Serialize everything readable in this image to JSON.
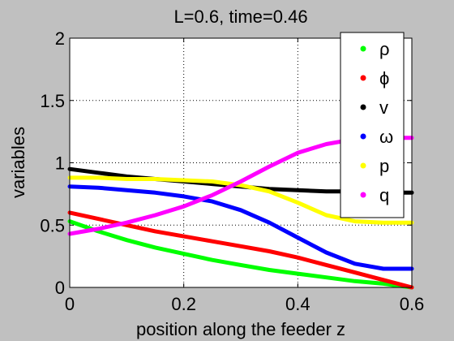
{
  "chart_data": {
    "type": "line",
    "title": "L=0.6, time=0.46",
    "xlabel": "position along the feeder z",
    "ylabel": "variables",
    "xlim": [
      0,
      0.6
    ],
    "ylim": [
      0,
      2
    ],
    "xticks": [
      "0",
      "0.2",
      "0.4",
      "0.6"
    ],
    "yticks": [
      "0",
      "0.5",
      "1",
      "1.5",
      "2"
    ],
    "grid": true,
    "legend_position": "top-right",
    "x": [
      0,
      0.05,
      0.1,
      0.15,
      0.2,
      0.25,
      0.3,
      0.35,
      0.4,
      0.45,
      0.5,
      0.55,
      0.6
    ],
    "series": [
      {
        "name": "ρ",
        "color": "#00ff00",
        "values": [
          0.53,
          0.45,
          0.38,
          0.32,
          0.27,
          0.22,
          0.18,
          0.14,
          0.11,
          0.08,
          0.05,
          0.03,
          0.0
        ]
      },
      {
        "name": "ϕ",
        "color": "#ff0000",
        "values": [
          0.6,
          0.55,
          0.5,
          0.45,
          0.41,
          0.37,
          0.33,
          0.29,
          0.24,
          0.18,
          0.12,
          0.06,
          0.0
        ]
      },
      {
        "name": "v",
        "color": "#000000",
        "values": [
          0.95,
          0.92,
          0.89,
          0.87,
          0.85,
          0.83,
          0.81,
          0.79,
          0.78,
          0.77,
          0.77,
          0.76,
          0.76
        ]
      },
      {
        "name": "ω",
        "color": "#0000ff",
        "values": [
          0.81,
          0.8,
          0.78,
          0.76,
          0.73,
          0.69,
          0.62,
          0.52,
          0.4,
          0.28,
          0.19,
          0.15,
          0.15
        ]
      },
      {
        "name": "p",
        "color": "#ffff00",
        "values": [
          0.88,
          0.88,
          0.87,
          0.87,
          0.86,
          0.85,
          0.82,
          0.77,
          0.68,
          0.58,
          0.53,
          0.52,
          0.52
        ]
      },
      {
        "name": "q",
        "color": "#ff00ff",
        "values": [
          0.43,
          0.47,
          0.52,
          0.58,
          0.65,
          0.74,
          0.85,
          0.97,
          1.08,
          1.15,
          1.19,
          1.2,
          1.2
        ]
      }
    ]
  }
}
